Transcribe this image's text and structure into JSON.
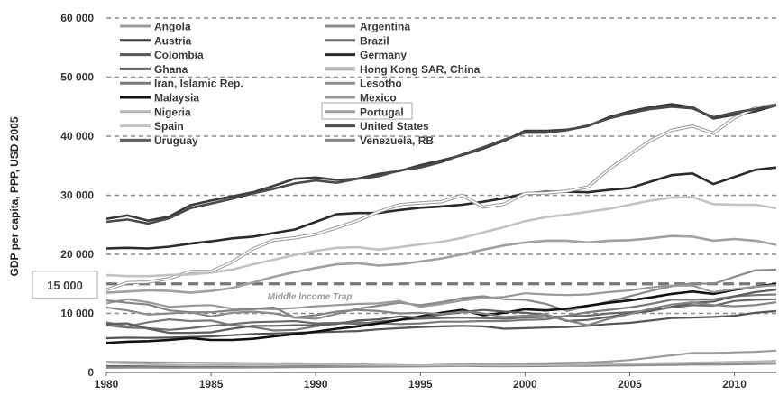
{
  "chart_data": {
    "type": "line",
    "title": "",
    "xlabel": "",
    "ylabel": "GDP per capita, PPP, USD 2005",
    "xlim": [
      1980,
      2012
    ],
    "ylim": [
      0,
      60000
    ],
    "x_ticks": [
      1980,
      1985,
      1990,
      1995,
      2000,
      2005,
      2010
    ],
    "y_tick_labels": [
      "0",
      "10 000",
      "20 000",
      "30 000",
      "40 000",
      "50 000",
      "60 000"
    ],
    "y_tick_values": [
      0,
      10000,
      20000,
      30000,
      40000,
      50000,
      60000
    ],
    "grid": "horizontal-dashed",
    "legend_position": "top-left",
    "annotation": {
      "text": "Middle Income Trap",
      "threshold_label": "15 000",
      "threshold_value": 15000
    },
    "x": [
      1980,
      1981,
      1982,
      1983,
      1984,
      1985,
      1986,
      1987,
      1988,
      1989,
      1990,
      1991,
      1992,
      1993,
      1994,
      1995,
      1996,
      1997,
      1998,
      1999,
      2000,
      2001,
      2002,
      2003,
      2004,
      2005,
      2006,
      2007,
      2008,
      2009,
      2010,
      2011,
      2012
    ],
    "series": [
      {
        "name": "Angola",
        "color": "#9c9c9c",
        "values": [
          1800,
          1750,
          1700,
          1680,
          1650,
          1620,
          1600,
          1580,
          1560,
          1540,
          1500,
          1480,
          1400,
          1300,
          1250,
          1200,
          1300,
          1400,
          1500,
          1500,
          1520,
          1550,
          1650,
          1700,
          1850,
          2100,
          2500,
          2900,
          3300,
          3300,
          3400,
          3500,
          3700
        ]
      },
      {
        "name": "Argentina",
        "color": "#8a8a8a",
        "values": [
          11000,
          10500,
          9800,
          10000,
          10200,
          9500,
          10100,
          10300,
          10000,
          9300,
          9100,
          9900,
          10800,
          11300,
          11800,
          11400,
          11900,
          12600,
          12900,
          12400,
          12300,
          11600,
          10400,
          11200,
          12000,
          12900,
          13800,
          14600,
          15100,
          15000,
          16200,
          17300,
          17400
        ]
      },
      {
        "name": "Austria",
        "color": "#3c3c3c",
        "values": [
          26000,
          26600,
          25700,
          26400,
          28300,
          29100,
          29800,
          30500,
          31600,
          32800,
          33000,
          32600,
          32800,
          33600,
          34100,
          35100,
          35900,
          36800,
          37900,
          39200,
          40900,
          40900,
          41100,
          41700,
          43200,
          44200,
          44900,
          45400,
          44900,
          43000,
          43600,
          44200,
          45200
        ]
      },
      {
        "name": "Brazil",
        "color": "#6a6a6a",
        "values": [
          8000,
          7600,
          7500,
          7200,
          7500,
          7900,
          8200,
          8500,
          8600,
          8700,
          8300,
          8400,
          8200,
          8600,
          8900,
          9100,
          9200,
          9300,
          9200,
          9100,
          9300,
          9400,
          9500,
          9600,
          10000,
          10200,
          10500,
          11000,
          11400,
          11300,
          12100,
          12300,
          12400
        ]
      },
      {
        "name": "Colombia",
        "color": "#555555",
        "values": [
          5800,
          5900,
          5850,
          5900,
          6000,
          6100,
          6300,
          6500,
          6600,
          6700,
          6800,
          6900,
          7000,
          7300,
          7500,
          7700,
          7800,
          7900,
          7800,
          7400,
          7500,
          7600,
          7700,
          7900,
          8200,
          8400,
          8800,
          9200,
          9300,
          9400,
          9600,
          10100,
          10400
        ]
      },
      {
        "name": "Germany",
        "color": "#2a2a2a",
        "values": [
          21000,
          21100,
          21000,
          21300,
          21800,
          22200,
          22700,
          23000,
          23600,
          24200,
          25500,
          26800,
          27000,
          27000,
          27500,
          27900,
          28100,
          28400,
          28900,
          29500,
          30300,
          30600,
          30600,
          30500,
          30900,
          31200,
          32300,
          33400,
          33700,
          31900,
          33100,
          34300,
          34700
        ]
      },
      {
        "name": "Ghana",
        "color": "#666666",
        "values": [
          1100,
          1050,
          1000,
          950,
          970,
          990,
          1000,
          1020,
          1040,
          1060,
          1080,
          1100,
          1110,
          1130,
          1140,
          1160,
          1180,
          1200,
          1230,
          1250,
          1280,
          1300,
          1320,
          1350,
          1390,
          1430,
          1480,
          1540,
          1600,
          1640,
          1700,
          1820,
          1920
        ]
      },
      {
        "name": "Hong Kong SAR, China",
        "color": "#bdbdbd",
        "values": [
          14000,
          15200,
          15300,
          15900,
          17100,
          17100,
          18700,
          20900,
          22400,
          22800,
          23400,
          24500,
          25700,
          27200,
          28400,
          28700,
          28900,
          30000,
          28000,
          28500,
          30300,
          30400,
          30700,
          31400,
          34400,
          36900,
          39300,
          41000,
          41700,
          40500,
          43100,
          44800,
          45300
        ]
      },
      {
        "name": "Iran, Islamic Rep.",
        "color": "#7a7a7a",
        "values": [
          8500,
          7800,
          8500,
          9000,
          8700,
          8800,
          8000,
          7700,
          7100,
          7200,
          7800,
          8400,
          8500,
          8300,
          8200,
          8300,
          8600,
          8600,
          8700,
          8700,
          8900,
          9000,
          9600,
          10200,
          10600,
          11000,
          11600,
          12300,
          12300,
          12400,
          12900,
          13100,
          13200
        ]
      },
      {
        "name": "Lesotho",
        "color": "#8f8f8f",
        "values": [
          800,
          820,
          830,
          800,
          810,
          830,
          820,
          840,
          860,
          890,
          920,
          950,
          970,
          990,
          1000,
          1020,
          1070,
          1120,
          1070,
          1060,
          1070,
          1080,
          1110,
          1130,
          1160,
          1190,
          1240,
          1290,
          1330,
          1330,
          1380,
          1430,
          1480
        ]
      },
      {
        "name": "Malaysia",
        "color": "#111111",
        "values": [
          5000,
          5200,
          5300,
          5500,
          5800,
          5500,
          5500,
          5700,
          6100,
          6500,
          6900,
          7400,
          7800,
          8300,
          8900,
          9500,
          10100,
          10600,
          9700,
          10100,
          10700,
          10500,
          10800,
          11300,
          11800,
          12200,
          12700,
          13300,
          13700,
          13300,
          14000,
          14500,
          15000
        ]
      },
      {
        "name": "Mexico",
        "color": "#9a9a9a",
        "values": [
          11700,
          12400,
          11900,
          11100,
          11300,
          11400,
          10800,
          10800,
          10700,
          10900,
          11200,
          11400,
          11600,
          11700,
          12100,
          11100,
          11600,
          12200,
          12600,
          12800,
          13400,
          13200,
          13100,
          13200,
          13600,
          13900,
          14400,
          14700,
          14700,
          13600,
          14100,
          14500,
          14800
        ]
      },
      {
        "name": "Nigeria",
        "color": "#b5b5b5",
        "values": [
          1700,
          1500,
          1400,
          1300,
          1200,
          1250,
          1250,
          1200,
          1250,
          1300,
          1350,
          1320,
          1310,
          1280,
          1240,
          1200,
          1220,
          1230,
          1230,
          1210,
          1230,
          1250,
          1260,
          1350,
          1420,
          1470,
          1530,
          1600,
          1660,
          1720,
          1800,
          1850,
          1880
        ]
      },
      {
        "name": "Portugal",
        "color": "#a0a0a0",
        "values": [
          13500,
          13700,
          13900,
          13800,
          13500,
          13800,
          14300,
          15200,
          16200,
          17000,
          17700,
          18300,
          18500,
          18100,
          18300,
          18800,
          19300,
          20000,
          20800,
          21500,
          22000,
          22300,
          22300,
          22000,
          22300,
          22400,
          22700,
          23100,
          23000,
          22300,
          22600,
          22300,
          21600
        ]
      },
      {
        "name": "Spain",
        "color": "#c2c2c2",
        "values": [
          16500,
          16300,
          16300,
          16500,
          16600,
          16900,
          17400,
          18300,
          19100,
          19900,
          20600,
          21100,
          21200,
          20800,
          21200,
          21700,
          22100,
          22800,
          23700,
          24600,
          25600,
          26300,
          26700,
          27200,
          27700,
          28400,
          29100,
          29600,
          29700,
          28500,
          28400,
          28400,
          27800
        ]
      },
      {
        "name": "United States",
        "color": "#4a4a4a",
        "values": [
          25500,
          25900,
          25200,
          26100,
          27800,
          28600,
          29400,
          30300,
          31100,
          32000,
          32500,
          32100,
          32800,
          33200,
          34200,
          34700,
          35600,
          36900,
          38100,
          39400,
          40600,
          40600,
          41000,
          41800,
          43000,
          43900,
          44600,
          45000,
          44700,
          43200,
          44000,
          44600,
          45300
        ]
      },
      {
        "name": "Uruguay",
        "color": "#5e5e5e",
        "values": [
          8200,
          8300,
          7400,
          6700,
          6700,
          6800,
          7400,
          7900,
          7900,
          8000,
          8000,
          8200,
          8800,
          9000,
          9500,
          9300,
          9800,
          10200,
          10600,
          10300,
          10100,
          9800,
          8700,
          8900,
          9400,
          10000,
          10400,
          11100,
          11800,
          12000,
          12900,
          13600,
          14000
        ]
      },
      {
        "name": "Venezuela, RB",
        "color": "#858585",
        "values": [
          12200,
          11800,
          11500,
          10500,
          10200,
          10200,
          10500,
          10700,
          11000,
          9300,
          9700,
          10300,
          10600,
          10400,
          10000,
          10100,
          9900,
          10300,
          10000,
          9400,
          9600,
          9800,
          8800,
          8000,
          9100,
          9900,
          10800,
          11500,
          11900,
          11400,
          11200,
          11400,
          11900
        ]
      }
    ]
  }
}
